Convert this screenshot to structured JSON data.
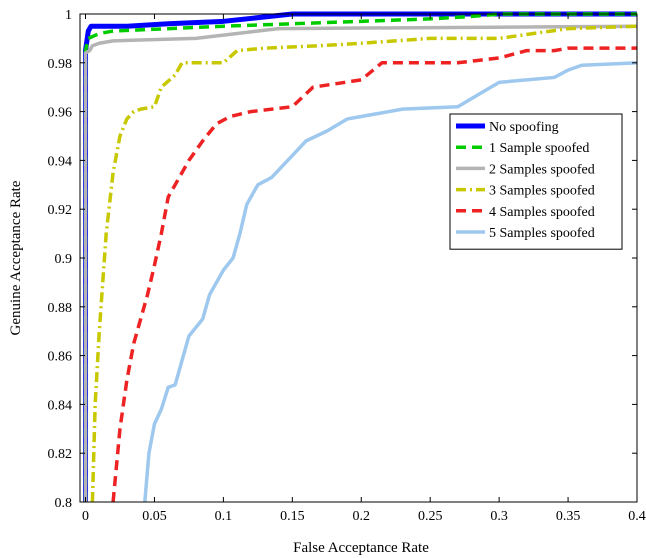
{
  "chart_data": {
    "type": "line",
    "xlabel": "False Acceptance Rate",
    "ylabel": "Genuine Acceptance Rate",
    "xlim": [
      -0.004,
      0.4
    ],
    "ylim": [
      0.8,
      1.0
    ],
    "xticks": [
      "0",
      "0.05",
      "0.1",
      "0.15",
      "0.2",
      "0.25",
      "0.3",
      "0.35",
      "0.4"
    ],
    "yticks": [
      "0.8",
      "0.82",
      "0.84",
      "0.86",
      "0.88",
      "0.9",
      "0.92",
      "0.94",
      "0.96",
      "0.98",
      "1"
    ],
    "grid": false,
    "legend_position": "right",
    "series": [
      {
        "name": "No spoofing",
        "color": "#0000ff",
        "dash": "solid",
        "points": [
          [
            0,
            0.8
          ],
          [
            0,
            0.985
          ],
          [
            0.002,
            0.993
          ],
          [
            0.004,
            0.995
          ],
          [
            0.03,
            0.995
          ],
          [
            0.06,
            0.996
          ],
          [
            0.1,
            0.997
          ],
          [
            0.15,
            1.0
          ],
          [
            0.4,
            1.0
          ]
        ]
      },
      {
        "name": "1 Sample spoofed",
        "color": "#00cc00",
        "dash": "dashed",
        "points": [
          [
            0,
            0.8
          ],
          [
            0,
            0.985
          ],
          [
            0.002,
            0.99
          ],
          [
            0.01,
            0.992
          ],
          [
            0.02,
            0.993
          ],
          [
            0.1,
            0.995
          ],
          [
            0.15,
            0.996
          ],
          [
            0.2,
            0.997
          ],
          [
            0.25,
            0.998
          ],
          [
            0.28,
            0.999
          ],
          [
            0.3,
            1.0
          ],
          [
            0.4,
            1.0
          ]
        ]
      },
      {
        "name": "2 Samples spoofed",
        "color": "#b4b4b4",
        "dash": "solid",
        "points": [
          [
            0,
            0.8
          ],
          [
            0,
            0.984
          ],
          [
            0.003,
            0.985
          ],
          [
            0.005,
            0.987
          ],
          [
            0.01,
            0.988
          ],
          [
            0.02,
            0.989
          ],
          [
            0.08,
            0.99
          ],
          [
            0.11,
            0.992
          ],
          [
            0.14,
            0.994
          ],
          [
            0.4,
            0.995
          ]
        ]
      },
      {
        "name": "3 Samples spoofed",
        "color": "#c8c800",
        "dash": "dashdot",
        "points": [
          [
            0.005,
            0.8
          ],
          [
            0.007,
            0.84
          ],
          [
            0.01,
            0.87
          ],
          [
            0.015,
            0.91
          ],
          [
            0.02,
            0.935
          ],
          [
            0.025,
            0.95
          ],
          [
            0.03,
            0.957
          ],
          [
            0.035,
            0.96
          ],
          [
            0.04,
            0.961
          ],
          [
            0.05,
            0.962
          ],
          [
            0.055,
            0.97
          ],
          [
            0.065,
            0.975
          ],
          [
            0.07,
            0.98
          ],
          [
            0.1,
            0.98
          ],
          [
            0.11,
            0.985
          ],
          [
            0.13,
            0.986
          ],
          [
            0.17,
            0.987
          ],
          [
            0.2,
            0.988
          ],
          [
            0.25,
            0.99
          ],
          [
            0.3,
            0.99
          ],
          [
            0.35,
            0.994
          ],
          [
            0.4,
            0.995
          ]
        ]
      },
      {
        "name": "4 Samples spoofed",
        "color": "#ee2222",
        "dash": "dashed",
        "points": [
          [
            0.02,
            0.8
          ],
          [
            0.025,
            0.83
          ],
          [
            0.03,
            0.85
          ],
          [
            0.035,
            0.865
          ],
          [
            0.04,
            0.875
          ],
          [
            0.045,
            0.885
          ],
          [
            0.05,
            0.897
          ],
          [
            0.055,
            0.91
          ],
          [
            0.06,
            0.925
          ],
          [
            0.065,
            0.93
          ],
          [
            0.075,
            0.94
          ],
          [
            0.085,
            0.948
          ],
          [
            0.095,
            0.955
          ],
          [
            0.105,
            0.958
          ],
          [
            0.12,
            0.96
          ],
          [
            0.15,
            0.962
          ],
          [
            0.165,
            0.97
          ],
          [
            0.2,
            0.973
          ],
          [
            0.215,
            0.98
          ],
          [
            0.27,
            0.98
          ],
          [
            0.3,
            0.982
          ],
          [
            0.32,
            0.985
          ],
          [
            0.34,
            0.985
          ],
          [
            0.35,
            0.986
          ],
          [
            0.4,
            0.986
          ]
        ]
      },
      {
        "name": "5 Samples spoofed",
        "color": "#9ec8ee",
        "dash": "solid",
        "points": [
          [
            0.043,
            0.8
          ],
          [
            0.046,
            0.82
          ],
          [
            0.05,
            0.832
          ],
          [
            0.055,
            0.838
          ],
          [
            0.06,
            0.847
          ],
          [
            0.065,
            0.848
          ],
          [
            0.07,
            0.858
          ],
          [
            0.075,
            0.868
          ],
          [
            0.085,
            0.875
          ],
          [
            0.09,
            0.885
          ],
          [
            0.1,
            0.895
          ],
          [
            0.107,
            0.9
          ],
          [
            0.112,
            0.91
          ],
          [
            0.117,
            0.922
          ],
          [
            0.125,
            0.93
          ],
          [
            0.135,
            0.933
          ],
          [
            0.15,
            0.942
          ],
          [
            0.16,
            0.948
          ],
          [
            0.175,
            0.952
          ],
          [
            0.19,
            0.957
          ],
          [
            0.2,
            0.958
          ],
          [
            0.23,
            0.961
          ],
          [
            0.27,
            0.962
          ],
          [
            0.285,
            0.967
          ],
          [
            0.3,
            0.972
          ],
          [
            0.34,
            0.974
          ],
          [
            0.35,
            0.977
          ],
          [
            0.36,
            0.979
          ],
          [
            0.4,
            0.98
          ]
        ]
      }
    ]
  }
}
